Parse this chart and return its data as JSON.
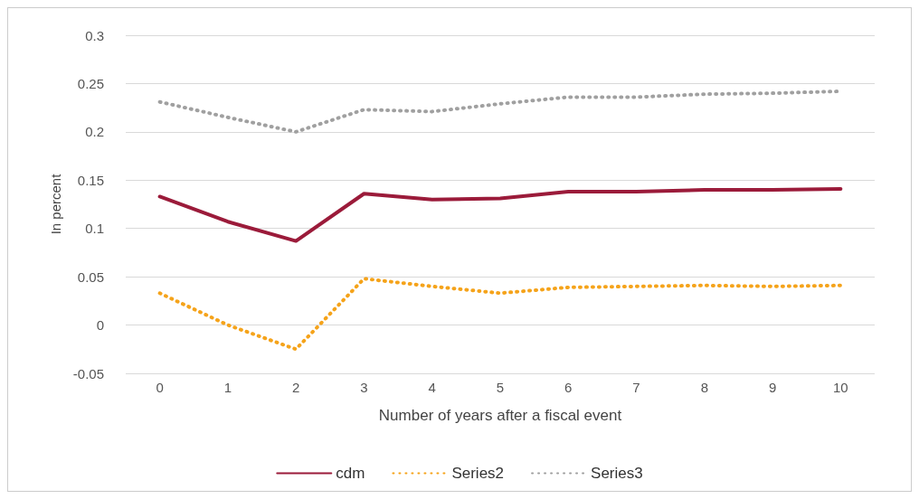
{
  "chart_data": {
    "type": "line",
    "xlabel": "Number of years after a fiscal event",
    "ylabel": "In percent",
    "categories": [
      "0",
      "1",
      "2",
      "3",
      "4",
      "5",
      "6",
      "7",
      "8",
      "9",
      "10"
    ],
    "series": [
      {
        "name": "cdm",
        "color": "#9b1b3a",
        "line_style": "solid",
        "values": [
          0.133,
          0.107,
          0.087,
          0.136,
          0.13,
          0.131,
          0.138,
          0.138,
          0.14,
          0.14,
          0.141
        ]
      },
      {
        "name": "Series2",
        "color": "#f5a31a",
        "line_style": "dotted",
        "values": [
          0.033,
          0.0,
          -0.025,
          0.048,
          0.04,
          0.033,
          0.039,
          0.04,
          0.041,
          0.04,
          0.041
        ]
      },
      {
        "name": "Series3",
        "color": "#a0a0a0",
        "line_style": "dotted",
        "values": [
          0.231,
          0.215,
          0.2,
          0.223,
          0.221,
          0.229,
          0.236,
          0.236,
          0.239,
          0.24,
          0.242
        ]
      }
    ],
    "ylim": [
      -0.05,
      0.3
    ],
    "yticks": [
      -0.05,
      0,
      0.05,
      0.1,
      0.15,
      0.2,
      0.25,
      0.3
    ],
    "grid": "y",
    "legend": "bottom",
    "marker": "none"
  }
}
